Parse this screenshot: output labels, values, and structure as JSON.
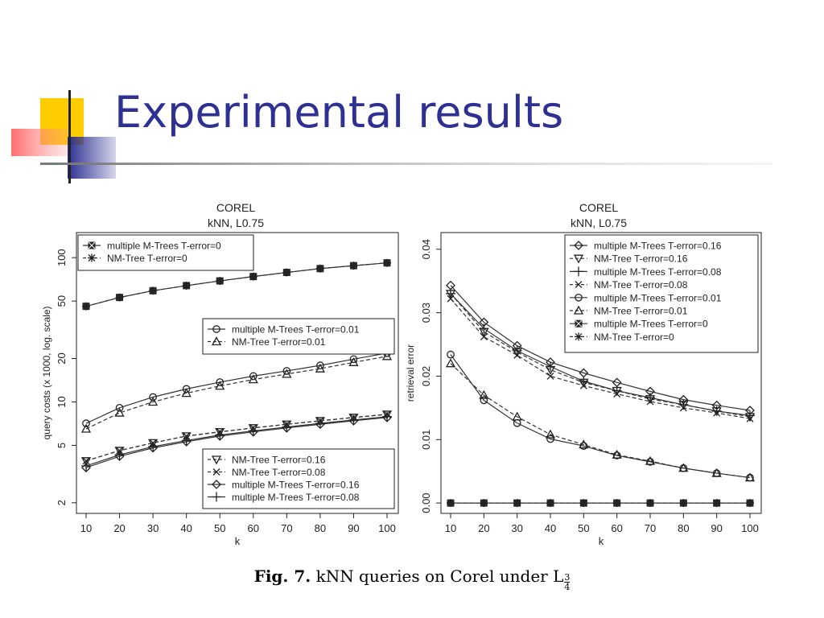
{
  "slide": {
    "title": "Experimental results",
    "caption_prefix": "Fig. 7.",
    "caption_text": "kNN queries on Corel under L",
    "caption_sub_num": "3",
    "caption_sub_den": "4",
    "title_color": "#2e3192"
  },
  "chart_data": [
    {
      "type": "line",
      "title": "COREL",
      "subtitle": "kNN, L0.75",
      "xlabel": "k",
      "ylabel": "query costs (x 1000, log. scale)",
      "yscale": "log",
      "ylim": [
        1.8,
        140
      ],
      "yticks": [
        2,
        5,
        10,
        20,
        50,
        100
      ],
      "x": [
        10,
        20,
        30,
        40,
        50,
        60,
        70,
        80,
        90,
        100
      ],
      "legend_groups": [
        {
          "position": "top-left",
          "entries": [
            0,
            1
          ]
        },
        {
          "position": "middle-right",
          "entries": [
            2,
            3
          ]
        },
        {
          "position": "bottom-right",
          "entries": [
            4,
            5,
            6,
            7
          ]
        }
      ],
      "series": [
        {
          "name": "multiple M-Trees T-error=0",
          "marker": "square-x",
          "dash": "solid",
          "values": [
            46,
            53,
            59,
            64,
            69,
            74,
            79,
            84,
            88,
            92
          ]
        },
        {
          "name": "NM-Tree T-error=0",
          "marker": "asterisk",
          "dash": "dashed",
          "values": [
            46,
            53,
            59,
            64,
            69,
            74,
            79,
            84,
            88,
            92
          ]
        },
        {
          "name": "multiple M-Trees T-error=0.01",
          "marker": "circle",
          "dash": "solid",
          "values": [
            7.1,
            9.1,
            10.8,
            12.3,
            13.7,
            15.1,
            16.4,
            17.9,
            19.8,
            21.8
          ]
        },
        {
          "name": "NM-Tree T-error=0.01",
          "marker": "triangle",
          "dash": "dashed",
          "values": [
            6.5,
            8.4,
            10.0,
            11.5,
            12.9,
            14.3,
            15.6,
            17.0,
            18.8,
            20.7
          ]
        },
        {
          "name": "NM-Tree T-error=0.16",
          "marker": "triangle-down",
          "dash": "dashed",
          "values": [
            3.9,
            4.6,
            5.2,
            5.8,
            6.2,
            6.6,
            7.0,
            7.4,
            7.8,
            8.2
          ]
        },
        {
          "name": "NM-Tree T-error=0.08",
          "marker": "x",
          "dash": "dashed",
          "values": [
            3.9,
            4.6,
            5.2,
            5.8,
            6.2,
            6.6,
            7.0,
            7.4,
            7.8,
            8.2
          ]
        },
        {
          "name": "multiple M-Trees T-error=0.16",
          "marker": "diamond",
          "dash": "solid",
          "values": [
            3.5,
            4.2,
            4.8,
            5.3,
            5.8,
            6.2,
            6.6,
            7.0,
            7.4,
            7.8
          ]
        },
        {
          "name": "multiple M-Trees T-error=0.08",
          "marker": "plus",
          "dash": "solid",
          "values": [
            3.6,
            4.3,
            4.9,
            5.4,
            5.9,
            6.3,
            6.7,
            7.1,
            7.5,
            7.9
          ]
        }
      ]
    },
    {
      "type": "line",
      "title": "COREL",
      "subtitle": "kNN, L0.75",
      "xlabel": "k",
      "ylabel": "retrieval error",
      "yscale": "linear",
      "ylim": [
        -0.001,
        0.042
      ],
      "yticks": [
        0.0,
        0.01,
        0.02,
        0.03,
        0.04
      ],
      "ytick_labels": [
        "0.00",
        "0.01",
        "0.02",
        "0.03",
        "0.04"
      ],
      "x": [
        10,
        20,
        30,
        40,
        50,
        60,
        70,
        80,
        90,
        100
      ],
      "legend_groups": [
        {
          "position": "top-right",
          "entries": [
            0,
            1,
            2,
            3,
            4,
            5,
            6,
            7
          ]
        }
      ],
      "series": [
        {
          "name": "multiple M-Trees T-error=0.16",
          "marker": "diamond",
          "dash": "solid",
          "values": [
            0.0343,
            0.0285,
            0.0248,
            0.0222,
            0.0205,
            0.019,
            0.0176,
            0.0163,
            0.0154,
            0.0146
          ]
        },
        {
          "name": "NM-Tree T-error=0.16",
          "marker": "triangle-down",
          "dash": "dashed",
          "values": [
            0.033,
            0.027,
            0.0238,
            0.021,
            0.019,
            0.0177,
            0.0164,
            0.0155,
            0.0145,
            0.0136
          ]
        },
        {
          "name": "multiple M-Trees T-error=0.08",
          "marker": "plus",
          "dash": "solid",
          "values": [
            0.033,
            0.0275,
            0.024,
            0.0215,
            0.0192,
            0.0177,
            0.0166,
            0.0155,
            0.0145,
            0.0138
          ]
        },
        {
          "name": "NM-Tree T-error=0.08",
          "marker": "x",
          "dash": "dashed",
          "values": [
            0.0322,
            0.0262,
            0.0233,
            0.02,
            0.0185,
            0.0172,
            0.016,
            0.015,
            0.0142,
            0.0133
          ]
        },
        {
          "name": "multiple M-Trees T-error=0.01",
          "marker": "circle",
          "dash": "solid",
          "values": [
            0.0234,
            0.0162,
            0.0126,
            0.0101,
            0.009,
            0.0075,
            0.0065,
            0.0055,
            0.0047,
            0.004
          ]
        },
        {
          "name": "NM-Tree T-error=0.01",
          "marker": "triangle",
          "dash": "dashed",
          "values": [
            0.022,
            0.017,
            0.0136,
            0.0108,
            0.0092,
            0.0076,
            0.0066,
            0.0055,
            0.0047,
            0.004
          ]
        },
        {
          "name": "multiple M-Trees T-error=0",
          "marker": "square-x",
          "dash": "solid",
          "values": [
            0,
            0,
            0,
            0,
            0,
            0,
            0,
            0,
            0,
            0
          ]
        },
        {
          "name": "NM-Tree T-error=0",
          "marker": "asterisk",
          "dash": "dashed",
          "values": [
            0,
            0,
            0,
            0,
            0,
            0,
            0,
            0,
            0,
            0
          ]
        }
      ]
    }
  ]
}
